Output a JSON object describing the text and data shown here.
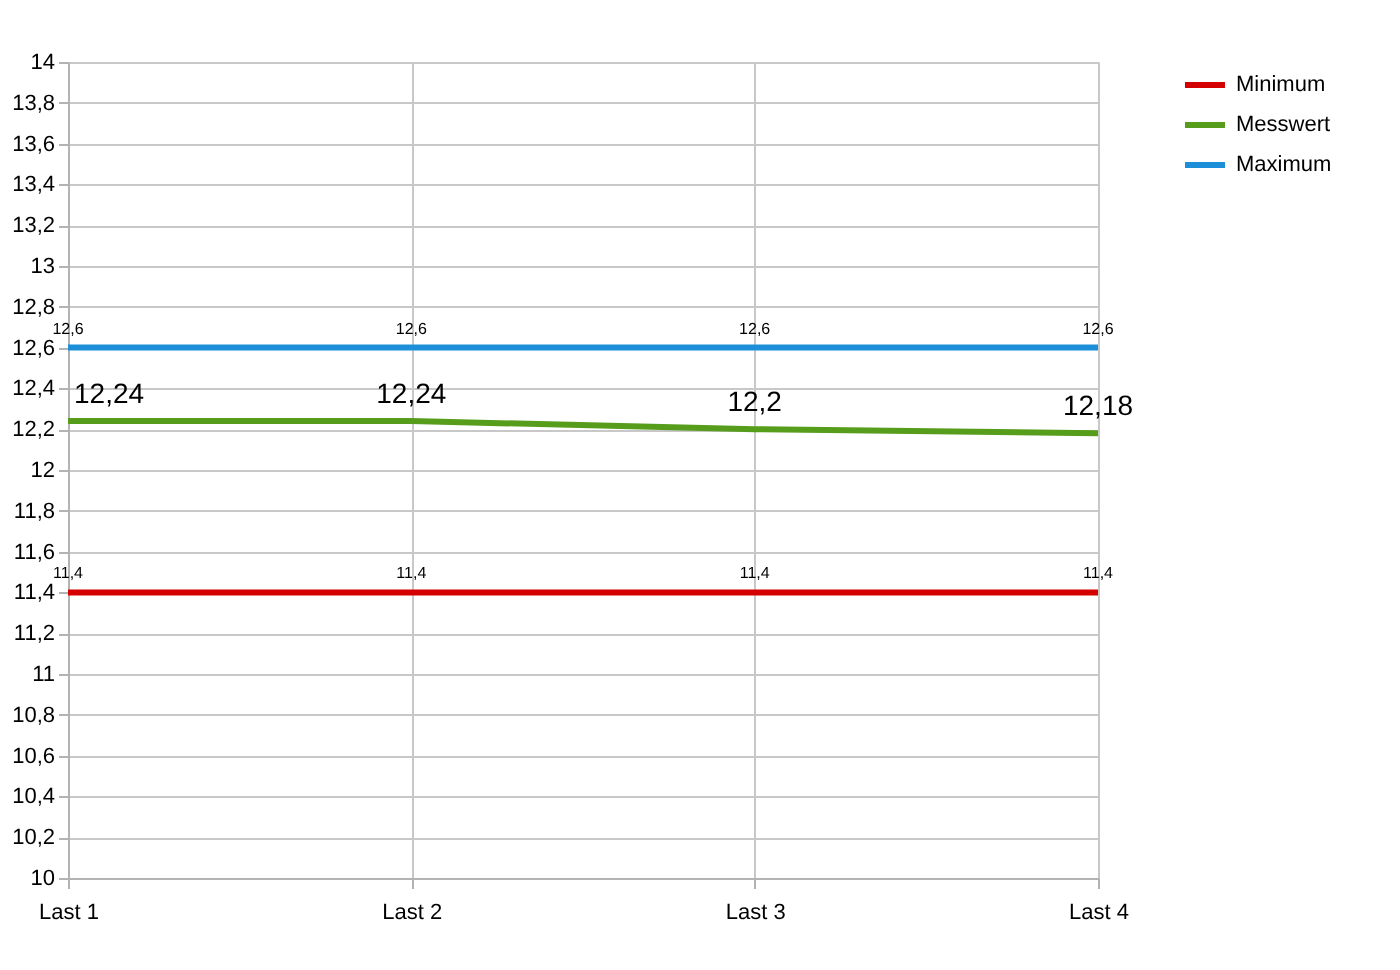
{
  "chart_data": {
    "type": "line",
    "categories": [
      "Last 1",
      "Last 2",
      "Last 3",
      "Last 4"
    ],
    "series": [
      {
        "name": "Minimum",
        "color": "#d40000",
        "values": [
          11.4,
          11.4,
          11.4,
          11.4
        ],
        "value_labels": [
          "11,4",
          "11,4",
          "11,4",
          "11,4"
        ]
      },
      {
        "name": "Messwert",
        "color": "#579d1c",
        "values": [
          12.24,
          12.24,
          12.2,
          12.18
        ],
        "value_labels": [
          "12,24",
          "12,24",
          "12,2",
          "12,18"
        ]
      },
      {
        "name": "Maximum",
        "color": "#1c8fd8",
        "values": [
          12.6,
          12.6,
          12.6,
          12.6
        ],
        "value_labels": [
          "12,6",
          "12,6",
          "12,6",
          "12,6"
        ]
      }
    ],
    "ylim": [
      10,
      14
    ],
    "yticks": [
      10,
      {
        "value": 10.2,
        "label": "10,2"
      },
      {
        "value": 10.4,
        "label": "10,4"
      },
      {
        "value": 10.6,
        "label": "10,6"
      },
      {
        "value": 10.8,
        "label": "10,8"
      },
      11,
      {
        "value": 11.2,
        "label": "11,2"
      },
      {
        "value": 11.4,
        "label": "11,4"
      },
      {
        "value": 11.6,
        "label": "11,6"
      },
      {
        "value": 11.8,
        "label": "11,8"
      },
      12,
      {
        "value": 12.2,
        "label": "12,2"
      },
      {
        "value": 12.4,
        "label": "12,4"
      },
      {
        "value": 12.6,
        "label": "12,6"
      },
      {
        "value": 12.8,
        "label": "12,8"
      },
      13,
      {
        "value": 13.2,
        "label": "13,2"
      },
      {
        "value": 13.4,
        "label": "13,4"
      },
      {
        "value": 13.6,
        "label": "13,6"
      },
      {
        "value": 13.8,
        "label": "13,8"
      },
      14
    ],
    "grid": true,
    "legend": "right",
    "marker": "none",
    "line_style": "solid"
  }
}
